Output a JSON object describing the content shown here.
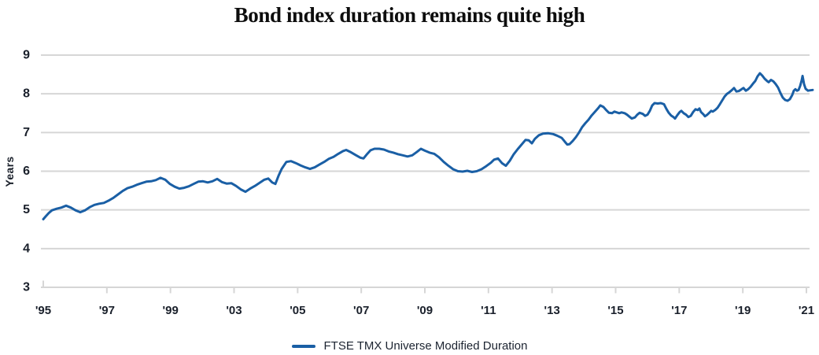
{
  "title": "Bond index duration remains quite high",
  "y_axis": {
    "label": "Years",
    "ticks": [
      9,
      8,
      7,
      6,
      5,
      4,
      3
    ],
    "min": 3,
    "max": 9
  },
  "x_axis": {
    "tick_labels": [
      "'95",
      "'97",
      "'99",
      "'03",
      "'05",
      "'07",
      "'09",
      "'11",
      "'13",
      "'15",
      "'17",
      "'19",
      "'21"
    ]
  },
  "legend": {
    "label": "FTSE TMX Universe Modified Duration"
  },
  "colors": {
    "line": "#1a5fa5",
    "grid": "#d6d6d6",
    "axis": "#d6d6d6",
    "tick_text": "#1a202b",
    "title_text": "#0d0d0d"
  },
  "chart_data": {
    "type": "line",
    "title": "Bond index duration remains quite high",
    "xlabel": "",
    "ylabel": "Years",
    "ylim": [
      3,
      9
    ],
    "grid": "horizontal",
    "legend_position": "bottom",
    "x_unit": "axis-fraction: 0 = '95 tick, 1 = '21 tick (chart omits an '01 label; ticks every 2 years otherwise)",
    "series": [
      {
        "name": "FTSE TMX Universe Modified Duration",
        "points": [
          [
            0.0,
            4.76
          ],
          [
            0.0031,
            4.83
          ],
          [
            0.0072,
            4.92
          ],
          [
            0.0113,
            4.99
          ],
          [
            0.0175,
            5.03
          ],
          [
            0.0237,
            5.06
          ],
          [
            0.0299,
            5.11
          ],
          [
            0.0361,
            5.06
          ],
          [
            0.0423,
            4.99
          ],
          [
            0.0485,
            4.94
          ],
          [
            0.0546,
            4.99
          ],
          [
            0.0608,
            5.07
          ],
          [
            0.067,
            5.13
          ],
          [
            0.0732,
            5.16
          ],
          [
            0.0794,
            5.18
          ],
          [
            0.0856,
            5.24
          ],
          [
            0.0918,
            5.31
          ],
          [
            0.0979,
            5.4
          ],
          [
            0.1041,
            5.49
          ],
          [
            0.1103,
            5.56
          ],
          [
            0.1165,
            5.6
          ],
          [
            0.1227,
            5.65
          ],
          [
            0.1289,
            5.69
          ],
          [
            0.1351,
            5.73
          ],
          [
            0.1412,
            5.74
          ],
          [
            0.1474,
            5.77
          ],
          [
            0.1536,
            5.83
          ],
          [
            0.1598,
            5.78
          ],
          [
            0.166,
            5.67
          ],
          [
            0.1722,
            5.6
          ],
          [
            0.1784,
            5.55
          ],
          [
            0.1845,
            5.57
          ],
          [
            0.1907,
            5.61
          ],
          [
            0.1969,
            5.67
          ],
          [
            0.2031,
            5.73
          ],
          [
            0.2093,
            5.74
          ],
          [
            0.2155,
            5.71
          ],
          [
            0.2216,
            5.74
          ],
          [
            0.2278,
            5.8
          ],
          [
            0.234,
            5.72
          ],
          [
            0.2402,
            5.68
          ],
          [
            0.2464,
            5.69
          ],
          [
            0.2526,
            5.62
          ],
          [
            0.2588,
            5.53
          ],
          [
            0.2649,
            5.47
          ],
          [
            0.2711,
            5.55
          ],
          [
            0.2773,
            5.62
          ],
          [
            0.2835,
            5.7
          ],
          [
            0.2897,
            5.78
          ],
          [
            0.2948,
            5.81
          ],
          [
            0.3,
            5.71
          ],
          [
            0.3041,
            5.67
          ],
          [
            0.3082,
            5.88
          ],
          [
            0.3124,
            6.06
          ],
          [
            0.3186,
            6.24
          ],
          [
            0.3247,
            6.26
          ],
          [
            0.3309,
            6.21
          ],
          [
            0.3371,
            6.15
          ],
          [
            0.3433,
            6.1
          ],
          [
            0.3495,
            6.06
          ],
          [
            0.3557,
            6.1
          ],
          [
            0.3619,
            6.17
          ],
          [
            0.368,
            6.24
          ],
          [
            0.3742,
            6.32
          ],
          [
            0.3804,
            6.37
          ],
          [
            0.3866,
            6.45
          ],
          [
            0.3928,
            6.52
          ],
          [
            0.3969,
            6.55
          ],
          [
            0.4031,
            6.49
          ],
          [
            0.4093,
            6.42
          ],
          [
            0.4155,
            6.35
          ],
          [
            0.4196,
            6.33
          ],
          [
            0.4237,
            6.43
          ],
          [
            0.4289,
            6.54
          ],
          [
            0.434,
            6.58
          ],
          [
            0.4402,
            6.58
          ],
          [
            0.4464,
            6.56
          ],
          [
            0.4526,
            6.51
          ],
          [
            0.4588,
            6.48
          ],
          [
            0.4649,
            6.44
          ],
          [
            0.4711,
            6.41
          ],
          [
            0.4773,
            6.38
          ],
          [
            0.4835,
            6.41
          ],
          [
            0.4897,
            6.5
          ],
          [
            0.4948,
            6.58
          ],
          [
            0.5,
            6.53
          ],
          [
            0.5062,
            6.48
          ],
          [
            0.5124,
            6.45
          ],
          [
            0.5186,
            6.36
          ],
          [
            0.5247,
            6.24
          ],
          [
            0.5309,
            6.14
          ],
          [
            0.5371,
            6.05
          ],
          [
            0.5433,
            6.0
          ],
          [
            0.5495,
            5.99
          ],
          [
            0.5557,
            6.01
          ],
          [
            0.5619,
            5.98
          ],
          [
            0.568,
            6.0
          ],
          [
            0.5742,
            6.05
          ],
          [
            0.5804,
            6.13
          ],
          [
            0.5866,
            6.22
          ],
          [
            0.5907,
            6.3
          ],
          [
            0.5959,
            6.33
          ],
          [
            0.601,
            6.21
          ],
          [
            0.6062,
            6.14
          ],
          [
            0.6113,
            6.27
          ],
          [
            0.6165,
            6.44
          ],
          [
            0.6216,
            6.57
          ],
          [
            0.6268,
            6.69
          ],
          [
            0.632,
            6.81
          ],
          [
            0.6361,
            6.8
          ],
          [
            0.6402,
            6.72
          ],
          [
            0.6443,
            6.84
          ],
          [
            0.6495,
            6.93
          ],
          [
            0.6546,
            6.97
          ],
          [
            0.6619,
            6.98
          ],
          [
            0.668,
            6.96
          ],
          [
            0.6732,
            6.92
          ],
          [
            0.6794,
            6.86
          ],
          [
            0.6835,
            6.76
          ],
          [
            0.6866,
            6.69
          ],
          [
            0.6897,
            6.7
          ],
          [
            0.6938,
            6.78
          ],
          [
            0.6979,
            6.88
          ],
          [
            0.7021,
            7.0
          ],
          [
            0.7062,
            7.14
          ],
          [
            0.7103,
            7.24
          ],
          [
            0.7144,
            7.33
          ],
          [
            0.7186,
            7.44
          ],
          [
            0.7227,
            7.53
          ],
          [
            0.7268,
            7.62
          ],
          [
            0.7299,
            7.7
          ],
          [
            0.734,
            7.66
          ],
          [
            0.7371,
            7.59
          ],
          [
            0.7412,
            7.51
          ],
          [
            0.7454,
            7.5
          ],
          [
            0.7485,
            7.54
          ],
          [
            0.7515,
            7.52
          ],
          [
            0.7546,
            7.5
          ],
          [
            0.7577,
            7.52
          ],
          [
            0.7619,
            7.5
          ],
          [
            0.7649,
            7.46
          ],
          [
            0.768,
            7.41
          ],
          [
            0.7711,
            7.36
          ],
          [
            0.7753,
            7.39
          ],
          [
            0.7784,
            7.46
          ],
          [
            0.7814,
            7.51
          ],
          [
            0.7856,
            7.48
          ],
          [
            0.7887,
            7.43
          ],
          [
            0.7918,
            7.46
          ],
          [
            0.7948,
            7.56
          ],
          [
            0.7979,
            7.7
          ],
          [
            0.801,
            7.76
          ],
          [
            0.8052,
            7.75
          ],
          [
            0.8093,
            7.76
          ],
          [
            0.8134,
            7.73
          ],
          [
            0.8165,
            7.61
          ],
          [
            0.8196,
            7.51
          ],
          [
            0.8227,
            7.44
          ],
          [
            0.8258,
            7.4
          ],
          [
            0.8278,
            7.36
          ],
          [
            0.8309,
            7.45
          ],
          [
            0.834,
            7.53
          ],
          [
            0.8361,
            7.56
          ],
          [
            0.8392,
            7.5
          ],
          [
            0.8423,
            7.46
          ],
          [
            0.8454,
            7.4
          ],
          [
            0.8485,
            7.43
          ],
          [
            0.8515,
            7.53
          ],
          [
            0.8546,
            7.6
          ],
          [
            0.8577,
            7.58
          ],
          [
            0.8598,
            7.62
          ],
          [
            0.8619,
            7.53
          ],
          [
            0.8649,
            7.47
          ],
          [
            0.867,
            7.42
          ],
          [
            0.8701,
            7.46
          ],
          [
            0.8732,
            7.52
          ],
          [
            0.8753,
            7.56
          ],
          [
            0.8773,
            7.54
          ],
          [
            0.8804,
            7.58
          ],
          [
            0.8835,
            7.64
          ],
          [
            0.8866,
            7.73
          ],
          [
            0.8897,
            7.83
          ],
          [
            0.8928,
            7.93
          ],
          [
            0.8959,
            8.0
          ],
          [
            0.899,
            8.04
          ],
          [
            0.9021,
            8.09
          ],
          [
            0.9052,
            8.15
          ],
          [
            0.9082,
            8.06
          ],
          [
            0.9113,
            8.07
          ],
          [
            0.9144,
            8.11
          ],
          [
            0.9175,
            8.15
          ],
          [
            0.9206,
            8.08
          ],
          [
            0.9237,
            8.12
          ],
          [
            0.9268,
            8.18
          ],
          [
            0.9299,
            8.26
          ],
          [
            0.933,
            8.33
          ],
          [
            0.936,
            8.45
          ],
          [
            0.9391,
            8.53
          ],
          [
            0.9422,
            8.47
          ],
          [
            0.9453,
            8.39
          ],
          [
            0.9485,
            8.33
          ],
          [
            0.9505,
            8.3
          ],
          [
            0.9536,
            8.36
          ],
          [
            0.9567,
            8.32
          ],
          [
            0.9598,
            8.25
          ],
          [
            0.9629,
            8.16
          ],
          [
            0.966,
            8.02
          ],
          [
            0.9691,
            7.9
          ],
          [
            0.9722,
            7.84
          ],
          [
            0.9753,
            7.82
          ],
          [
            0.9784,
            7.86
          ],
          [
            0.9814,
            7.97
          ],
          [
            0.9835,
            8.08
          ],
          [
            0.9856,
            8.12
          ],
          [
            0.9876,
            8.08
          ],
          [
            0.9897,
            8.1
          ],
          [
            0.9918,
            8.2
          ],
          [
            0.9938,
            8.35
          ],
          [
            0.9949,
            8.46
          ],
          [
            0.9969,
            8.25
          ],
          [
            0.999,
            8.13
          ],
          [
            1.0021,
            8.08
          ],
          [
            1.0052,
            8.09
          ],
          [
            1.0082,
            8.1
          ]
        ]
      }
    ]
  }
}
